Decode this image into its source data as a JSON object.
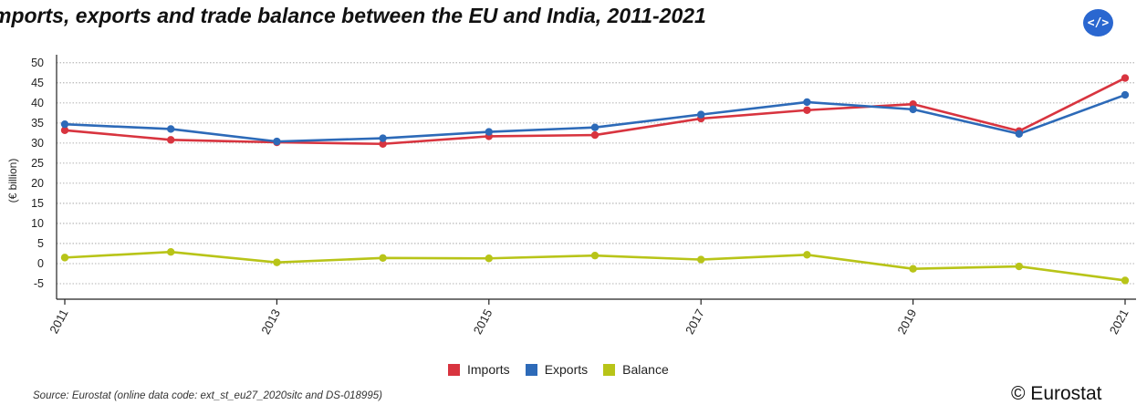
{
  "header": {
    "title": "mports, exports and trade balance between the EU and India, 2011-2021"
  },
  "toolbar": {
    "embed_label": "</>",
    "embed_icon": "code-embed-icon"
  },
  "footer": {
    "source": "Source: Eurostat (online data code: ext_st_eu27_2020sitc and DS-018995)",
    "credit": "© Eurostat"
  },
  "chart_data": {
    "type": "line",
    "title": "mports, exports and trade balance between the EU and India, 2011-2021",
    "ylabel": "(€ billion)",
    "xlabel": "",
    "x": [
      2011,
      2012,
      2013,
      2014,
      2015,
      2016,
      2017,
      2018,
      2019,
      2020,
      2021
    ],
    "x_tick_labels": [
      "2011",
      "2013",
      "2015",
      "2017",
      "2019",
      "2021"
    ],
    "x_tick_values": [
      2011,
      2013,
      2015,
      2017,
      2019,
      2021
    ],
    "y_ticks": [
      -5,
      0,
      5,
      10,
      15,
      20,
      25,
      30,
      35,
      40,
      45,
      50
    ],
    "ylim": [
      -7.5,
      52
    ],
    "grid": "horizontal dotted",
    "legend_position": "bottom-center",
    "series": [
      {
        "name": "Imports",
        "color": "#d8343f",
        "values": [
          33.2,
          30.8,
          30.2,
          29.8,
          31.7,
          32.0,
          36.1,
          38.2,
          39.7,
          33.0,
          46.2
        ]
      },
      {
        "name": "Exports",
        "color": "#2d6ab8",
        "values": [
          34.7,
          33.5,
          30.4,
          31.2,
          32.8,
          33.9,
          37.1,
          40.2,
          38.4,
          32.3,
          42.0
        ]
      },
      {
        "name": "Balance",
        "color": "#b8c418",
        "values": [
          1.5,
          2.9,
          0.3,
          1.4,
          1.3,
          2.0,
          1.0,
          2.2,
          -1.3,
          -0.7,
          -4.2
        ]
      }
    ]
  }
}
